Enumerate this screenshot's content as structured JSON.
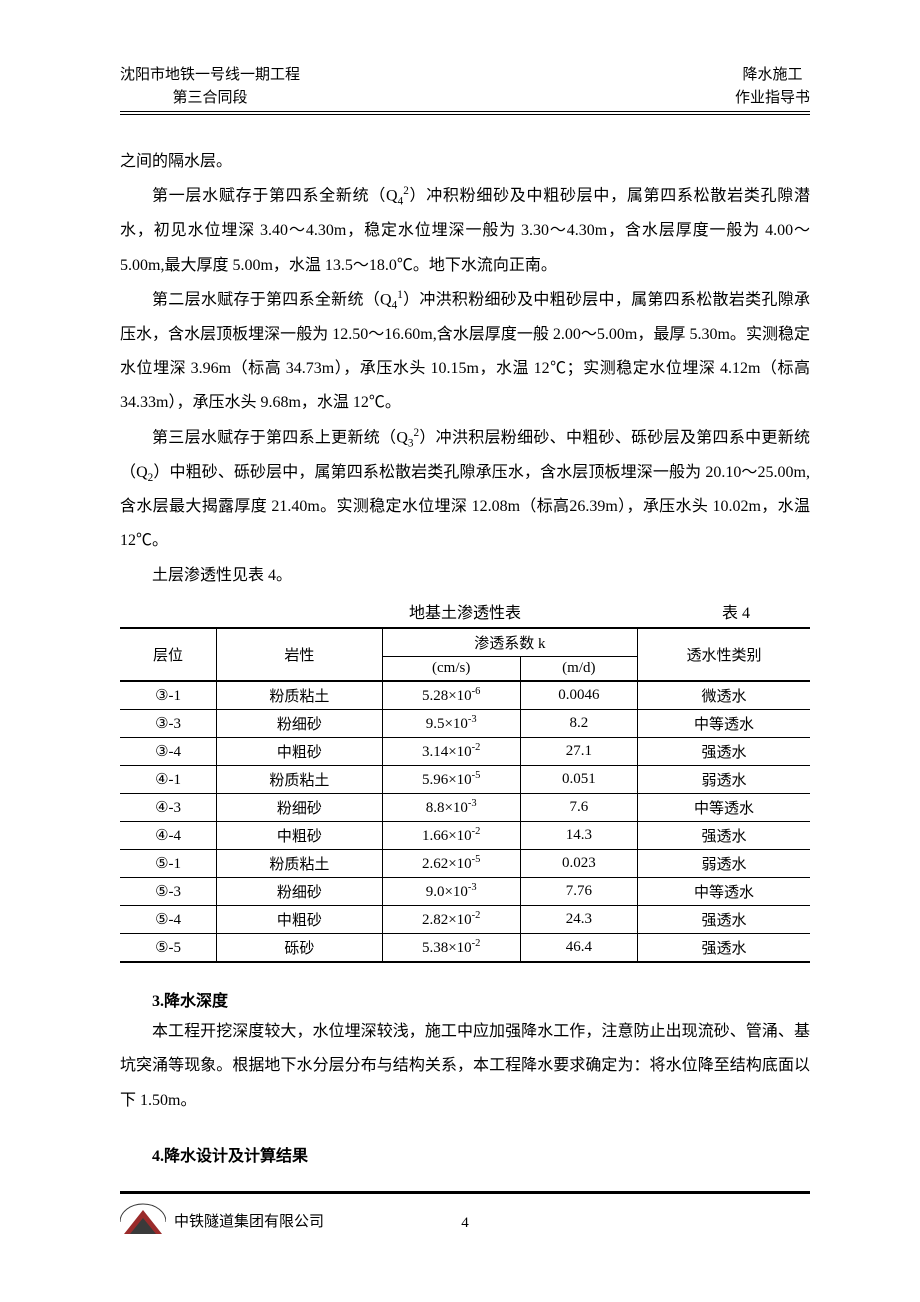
{
  "header": {
    "left_line1": "沈阳市地铁一号线一期工程",
    "left_line2": "第三合同段",
    "right_line1": "降水施工",
    "right_line2": "作业指导书"
  },
  "paragraphs": {
    "p0": "之间的隔水层。",
    "p1a": "第一层水赋存于第四系全新统（Q",
    "p1b": "）冲积粉细砂及中粗砂层中，属第四系松散岩类孔隙潜水，初见水位埋深 3.40～4.30m，稳定水位埋深一般为 3.30～4.30m，含水层厚度一般为 4.00～5.00m,最大厚度 5.00m，水温 13.5～18.0℃。地下水流向正南。",
    "p2a": "第二层水赋存于第四系全新统（Q",
    "p2b": "）冲洪积粉细砂及中粗砂层中，属第四系松散岩类孔隙承压水，含水层顶板埋深一般为 12.50～16.60m,含水层厚度一般 2.00～5.00m，最厚 5.30m。实测稳定水位埋深 3.96m（标高 34.73m），承压水头 10.15m，水温 12℃；实测稳定水位埋深 4.12m（标高 34.33m），承压水头 9.68m，水温 12℃。",
    "p3a": "第三层水赋存于第四系上更新统（Q",
    "p3b": "）冲洪积层粉细砂、中粗砂、砾砂层及第四系中更新统（Q",
    "p3c": "）中粗砂、砾砂层中，属第四系松散岩类孔隙承压水，含水层顶板埋深一般为 20.10～25.00m,含水层最大揭露厚度 21.40m。实测稳定水位埋深 12.08m（标高26.39m），承压水头 10.02m，水温 12℃。",
    "p4": "土层渗透性见表 4。"
  },
  "table": {
    "caption": "地基土渗透性表",
    "caption_label": "表 4",
    "head": {
      "c1": "层位",
      "c2": "岩性",
      "c3": "渗透系数 k",
      "c3a": "(cm/s)",
      "c3b": "(m/d)",
      "c4": "透水性类别"
    },
    "rows": [
      {
        "c1": "③-1",
        "c2": "粉质粘土",
        "c3a_m": "5.28×10",
        "c3a_e": "-6",
        "c3b": "0.0046",
        "c4": "微透水"
      },
      {
        "c1": "③-3",
        "c2": "粉细砂",
        "c3a_m": "9.5×10",
        "c3a_e": "-3",
        "c3b": "8.2",
        "c4": "中等透水"
      },
      {
        "c1": "③-4",
        "c2": "中粗砂",
        "c3a_m": "3.14×10",
        "c3a_e": "-2",
        "c3b": "27.1",
        "c4": "强透水"
      },
      {
        "c1": "④-1",
        "c2": "粉质粘土",
        "c3a_m": "5.96×10",
        "c3a_e": "-5",
        "c3b": "0.051",
        "c4": "弱透水"
      },
      {
        "c1": "④-3",
        "c2": "粉细砂",
        "c3a_m": "8.8×10",
        "c3a_e": "-3",
        "c3b": "7.6",
        "c4": "中等透水"
      },
      {
        "c1": "④-4",
        "c2": "中粗砂",
        "c3a_m": "1.66×10",
        "c3a_e": "-2",
        "c3b": "14.3",
        "c4": "强透水"
      },
      {
        "c1": "⑤-1",
        "c2": "粉质粘土",
        "c3a_m": "2.62×10",
        "c3a_e": "-5",
        "c3b": "0.023",
        "c4": "弱透水"
      },
      {
        "c1": "⑤-3",
        "c2": "粉细砂",
        "c3a_m": "9.0×10",
        "c3a_e": "-3",
        "c3b": "7.76",
        "c4": "中等透水"
      },
      {
        "c1": "⑤-4",
        "c2": "中粗砂",
        "c3a_m": "2.82×10",
        "c3a_e": "-2",
        "c3b": "24.3",
        "c4": "强透水"
      },
      {
        "c1": "⑤-5",
        "c2": "砾砂",
        "c3a_m": "5.38×10",
        "c3a_e": "-2",
        "c3b": "46.4",
        "c4": "强透水"
      }
    ]
  },
  "section3": {
    "heading": "3.降水深度",
    "p": "本工程开挖深度较大，水位埋深较浅，施工中应加强降水工作，注意防止出现流砂、管涌、基坑突涌等现象。根据地下水分层分布与结构关系，本工程降水要求确定为：将水位降至结构底面以下 1.50m。"
  },
  "section4": {
    "heading": "4.降水设计及计算结果"
  },
  "footer": {
    "company": "中铁隧道集团有限公司",
    "page": "4"
  },
  "colors": {
    "text": "#000000",
    "bg": "#ffffff",
    "logo_red": "#9a2b2b",
    "logo_dark": "#3a3a3a"
  }
}
